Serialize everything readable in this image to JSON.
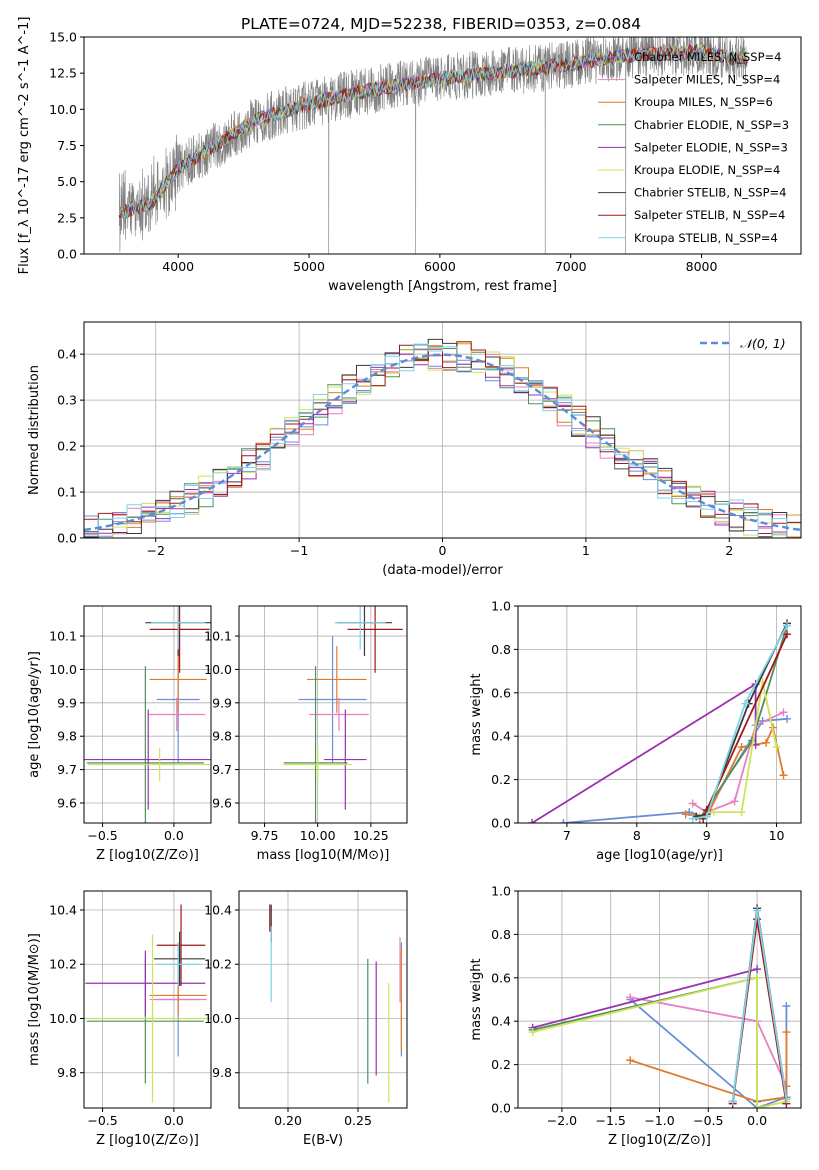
{
  "figure_title": "PLATE=0724, MJD=52238, FIBERID=0353, z=0.084",
  "colors": {
    "blue": "#6a8fd8",
    "orange": "#e07b2c",
    "gray": "#7f7f7f",
    "green": "#4f8f5a",
    "purple": "#9b30b0",
    "lime": "#cfe35a",
    "dark": "#3a3a3a",
    "red": "#a01818",
    "cyan": "#7fd3e8",
    "pink": "#e87fc0",
    "spectrum": "#808080"
  },
  "models": [
    {
      "name": "Chabrier MILES, N<sub>SSP</sub>=4",
      "label": "Chabrier MILES, N_SSP=4",
      "color": "#6a8fd8"
    },
    {
      "name": "Salpeter MILES",
      "label": "Salpeter MILES, N_SSP=4",
      "color": "#e87fc0"
    },
    {
      "name": "Kroupa MILES",
      "label": "Kroupa MILES, N_SSP=6",
      "color": "#e07b2c"
    },
    {
      "name": "Chabrier ELODIE",
      "label": "Chabrier ELODIE, N_SSP=3",
      "color": "#4f8f5a"
    },
    {
      "name": "Salpeter ELODIE",
      "label": "Salpeter ELODIE, N_SSP=3",
      "color": "#9b30b0"
    },
    {
      "name": "Kroupa ELODIE",
      "label": "Kroupa ELODIE, N_SSP=4",
      "color": "#cfe35a"
    },
    {
      "name": "Chabrier STELIB",
      "label": "Chabrier STELIB, N_SSP=4",
      "color": "#3a3a3a"
    },
    {
      "name": "Salpeter STELIB",
      "label": "Salpeter STELIB, N_SSP=4",
      "color": "#a01818"
    },
    {
      "name": "Kroupa STELIB",
      "label": "Kroupa STELIB, N_SSP=4",
      "color": "#7fd3e8"
    }
  ],
  "chart_data": [
    {
      "type": "line",
      "xlabel": "wavelength [Angstrom, rest frame]",
      "ylabel": "Flux [f_λ 10^-17 erg cm^-2 s^-1 A^-1]",
      "xlim": [
        3280,
        8760
      ],
      "ylim": [
        0,
        15
      ],
      "xticks": [
        4000,
        5000,
        6000,
        7000,
        8000
      ],
      "yticks": [
        0.0,
        2.5,
        5.0,
        7.5,
        10.0,
        12.5,
        15.0
      ],
      "spectrum_range": [
        3550,
        8350
      ],
      "continuum": [
        [
          3550,
          2.8
        ],
        [
          3800,
          3.6
        ],
        [
          4000,
          5.9
        ],
        [
          4300,
          7.6
        ],
        [
          4600,
          9.3
        ],
        [
          5000,
          10.4
        ],
        [
          5500,
          11.4
        ],
        [
          6000,
          12.1
        ],
        [
          6500,
          12.6
        ],
        [
          7000,
          13.1
        ],
        [
          7500,
          13.8
        ],
        [
          8000,
          14.0
        ],
        [
          8350,
          13.3
        ]
      ],
      "legend_position": "top-right"
    },
    {
      "type": "line",
      "xlabel": "(data-model)/error",
      "ylabel": "Normed distribution",
      "xlim": [
        -2.5,
        2.5
      ],
      "ylim": [
        0,
        0.47
      ],
      "xticks": [
        -2,
        -1,
        0,
        1,
        2
      ],
      "yticks": [
        0.0,
        0.1,
        0.2,
        0.3,
        0.4
      ],
      "bin_width": 0.1,
      "reference_label": "𝒩(0, 1)",
      "legend_position": "top-right"
    },
    {
      "type": "scatter",
      "xlabel": "Z [log10(Z/Z⊙)]",
      "ylabel": "age [log10(age/yr)]",
      "xlim": [
        -0.63,
        0.26
      ],
      "ylim": [
        9.54,
        10.19
      ],
      "xticks": [
        -0.5,
        0.0
      ],
      "yticks": [
        9.6,
        9.7,
        9.8,
        9.9,
        10.0,
        10.1
      ],
      "points": [
        {
          "x": 0.03,
          "y": 9.91,
          "xerr": 0.15,
          "yerr": 0.19
        },
        {
          "x": 0.02,
          "y": 9.865,
          "xerr": 0.2,
          "yerr": 0.05
        },
        {
          "x": 0.03,
          "y": 9.97,
          "xerr": 0.2,
          "yerr": 0.1
        },
        {
          "x": -0.2,
          "y": 9.72,
          "xerr": 0.41,
          "yerr": 0.29
        },
        {
          "x": -0.18,
          "y": 9.73,
          "xerr": 0.45,
          "yerr": 0.15
        },
        {
          "x": -0.1,
          "y": 9.715,
          "xerr": 0.5,
          "yerr": 0.05
        },
        {
          "x": 0.03,
          "y": 10.14,
          "xerr": 0.23,
          "yerr": 0.1
        },
        {
          "x": 0.04,
          "y": 10.12,
          "xerr": 0.21,
          "yerr": 0.13
        },
        {
          "x": 0.03,
          "y": 10.14,
          "xerr": 0.19,
          "yerr": 0.08
        }
      ]
    },
    {
      "type": "scatter",
      "xlabel": "mass [log10(M/M⊙)]",
      "ylabel": "",
      "xlim": [
        9.63,
        10.42
      ],
      "ylim": [
        9.54,
        10.19
      ],
      "xticks": [
        9.75,
        10.0,
        10.25
      ],
      "yticks": [
        9.6,
        9.7,
        9.8,
        9.9,
        10.0,
        10.1
      ],
      "points": [
        {
          "x": 10.07,
          "y": 9.91,
          "xerr": 0.16,
          "yerr": 0.19
        },
        {
          "x": 10.1,
          "y": 9.865,
          "xerr": 0.14,
          "yerr": 0.05
        },
        {
          "x": 10.09,
          "y": 9.97,
          "xerr": 0.14,
          "yerr": 0.1
        },
        {
          "x": 9.99,
          "y": 9.72,
          "xerr": 0.15,
          "yerr": 0.29
        },
        {
          "x": 10.13,
          "y": 9.73,
          "xerr": 0.1,
          "yerr": 0.15
        },
        {
          "x": 10.0,
          "y": 9.715,
          "xerr": 0.16,
          "yerr": 0.05
        },
        {
          "x": 10.22,
          "y": 10.14,
          "xerr": 0.13,
          "yerr": 0.1
        },
        {
          "x": 10.27,
          "y": 10.12,
          "xerr": 0.13,
          "yerr": 0.13
        },
        {
          "x": 10.2,
          "y": 10.14,
          "xerr": 0.12,
          "yerr": 0.08
        }
      ]
    },
    {
      "type": "line",
      "xlabel": "age [log10(age/yr)]",
      "ylabel": "mass weight",
      "xlim": [
        6.3,
        10.35
      ],
      "ylim": [
        0,
        1.0
      ],
      "xticks": [
        7,
        8,
        9,
        10
      ],
      "yticks": [
        0.0,
        0.2,
        0.4,
        0.6,
        0.8,
        1.0
      ],
      "series": [
        {
          "points": [
            [
              6.95,
              0.0
            ],
            [
              8.75,
              0.05
            ],
            [
              8.95,
              0.03
            ],
            [
              9.8,
              0.47
            ],
            [
              10.15,
              0.48
            ]
          ]
        },
        {
          "points": [
            [
              8.8,
              0.09
            ],
            [
              9.0,
              0.05
            ],
            [
              9.4,
              0.1
            ],
            [
              9.7,
              0.45
            ],
            [
              10.1,
              0.51
            ]
          ]
        },
        {
          "points": [
            [
              8.7,
              0.04
            ],
            [
              9.0,
              0.03
            ],
            [
              9.5,
              0.35
            ],
            [
              9.85,
              0.37
            ],
            [
              9.95,
              0.44
            ],
            [
              10.1,
              0.22
            ]
          ]
        },
        {
          "points": [
            [
              8.9,
              0.02
            ],
            [
              9.65,
              0.38
            ],
            [
              10.15,
              0.91
            ]
          ]
        },
        {
          "points": [
            [
              6.5,
              0.0
            ],
            [
              9.7,
              0.64
            ],
            [
              9.7,
              0.36
            ]
          ]
        },
        {
          "points": [
            [
              8.9,
              0.03
            ],
            [
              9.1,
              0.05
            ],
            [
              9.5,
              0.05
            ],
            [
              9.8,
              0.65
            ],
            [
              10.0,
              0.35
            ]
          ]
        },
        {
          "points": [
            [
              8.85,
              0.03
            ],
            [
              9.0,
              0.04
            ],
            [
              9.6,
              0.55
            ],
            [
              10.15,
              0.92
            ]
          ]
        },
        {
          "points": [
            [
              8.95,
              0.02
            ],
            [
              9.0,
              0.06
            ],
            [
              10.15,
              0.87
            ]
          ]
        },
        {
          "points": [
            [
              8.8,
              0.02
            ],
            [
              9.0,
              0.03
            ],
            [
              9.55,
              0.55
            ],
            [
              10.15,
              0.91
            ]
          ]
        }
      ]
    },
    {
      "type": "scatter",
      "xlabel": "Z [log10(Z/Z⊙)]",
      "ylabel": "mass [log10(M/M⊙)]",
      "xlim": [
        -0.63,
        0.26
      ],
      "ylim": [
        9.67,
        10.47
      ],
      "xticks": [
        -0.5,
        0.0
      ],
      "yticks": [
        9.8,
        10.0,
        10.2,
        10.4
      ],
      "points": [
        {
          "x": 0.03,
          "y": 10.07,
          "xerr": 0.14,
          "yerr": 0.21
        },
        {
          "x": 0.03,
          "y": 10.07,
          "xerr": 0.2,
          "yerr": 0.05
        },
        {
          "x": 0.03,
          "y": 10.085,
          "xerr": 0.2,
          "yerr": 0.07
        },
        {
          "x": -0.2,
          "y": 9.99,
          "xerr": 0.41,
          "yerr": 0.23
        },
        {
          "x": -0.2,
          "y": 10.13,
          "xerr": 0.42,
          "yerr": 0.12
        },
        {
          "x": -0.15,
          "y": 10.0,
          "xerr": 0.45,
          "yerr": 0.31
        },
        {
          "x": 0.04,
          "y": 10.22,
          "xerr": 0.18,
          "yerr": 0.1
        },
        {
          "x": 0.05,
          "y": 10.27,
          "xerr": 0.17,
          "yerr": 0.15
        },
        {
          "x": 0.03,
          "y": 10.2,
          "xerr": 0.16,
          "yerr": 0.08
        }
      ]
    },
    {
      "type": "scatter",
      "xlabel": "E(B-V)",
      "ylabel": "",
      "xlim": [
        0.165,
        0.285
      ],
      "ylim": [
        9.67,
        10.47
      ],
      "xticks": [
        0.2,
        0.25
      ],
      "yticks": [
        9.8,
        10.0,
        10.2,
        10.4
      ],
      "points": [
        {
          "x": 0.281,
          "y": 10.07,
          "yerr": 0.21
        },
        {
          "x": 0.28,
          "y": 10.18,
          "yerr": 0.12
        },
        {
          "x": 0.281,
          "y": 10.07,
          "yerr": 0.19
        },
        {
          "x": 0.257,
          "y": 9.99,
          "yerr": 0.23
        },
        {
          "x": 0.263,
          "y": 10.0,
          "yerr": 0.21
        },
        {
          "x": 0.272,
          "y": 9.91,
          "yerr": 0.22
        },
        {
          "x": 0.188,
          "y": 10.35,
          "yerr": 0.07
        },
        {
          "x": 0.187,
          "y": 10.37,
          "yerr": 0.05
        },
        {
          "x": 0.188,
          "y": 10.2,
          "yerr": 0.14
        }
      ]
    },
    {
      "type": "line",
      "xlabel": "Z [log10(Z/Z⊙)]",
      "ylabel": "mass weight",
      "xlim": [
        -2.45,
        0.45
      ],
      "ylim": [
        0,
        1.0
      ],
      "xticks": [
        -2.0,
        -1.5,
        -1.0,
        -0.5,
        0.0
      ],
      "yticks": [
        0.0,
        0.2,
        0.4,
        0.6,
        0.8,
        1.0
      ],
      "series": [
        {
          "points": [
            [
              -1.3,
              0.5
            ],
            [
              0.0,
              0.0
            ],
            [
              0.3,
              0.05
            ],
            [
              0.3,
              0.47
            ]
          ]
        },
        {
          "points": [
            [
              -1.3,
              0.51
            ],
            [
              0.0,
              0.4
            ],
            [
              0.3,
              0.1
            ]
          ]
        },
        {
          "points": [
            [
              -1.3,
              0.22
            ],
            [
              0.0,
              0.03
            ],
            [
              0.3,
              0.05
            ],
            [
              0.3,
              0.35
            ],
            [
              0.3,
              0.1
            ]
          ]
        },
        {
          "points": [
            [
              -2.3,
              0.36
            ],
            [
              0.0,
              0.6
            ],
            [
              0.0,
              0.03
            ]
          ]
        },
        {
          "points": [
            [
              -2.3,
              0.37
            ],
            [
              0.0,
              0.64
            ]
          ]
        },
        {
          "points": [
            [
              -2.3,
              0.35
            ],
            [
              0.0,
              0.6
            ],
            [
              0.0,
              0.0
            ],
            [
              0.3,
              0.03
            ]
          ]
        },
        {
          "points": [
            [
              -0.25,
              0.03
            ],
            [
              0.0,
              0.92
            ],
            [
              0.3,
              0.04
            ]
          ]
        },
        {
          "points": [
            [
              -0.25,
              0.02
            ],
            [
              0.0,
              0.87
            ],
            [
              0.3,
              0.02
            ]
          ]
        },
        {
          "points": [
            [
              -0.25,
              0.03
            ],
            [
              0.0,
              0.91
            ],
            [
              0.3,
              0.04
            ]
          ]
        }
      ]
    }
  ]
}
